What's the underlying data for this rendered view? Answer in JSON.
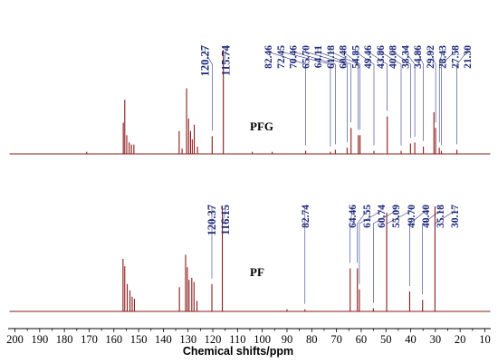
{
  "chart_data": {
    "type": "line",
    "xlabel": "Chemical shifts/ppm",
    "ylabel": "",
    "xlim": [
      200,
      10
    ],
    "x_reversed": true,
    "x_ticks": [
      200,
      190,
      180,
      170,
      160,
      150,
      140,
      130,
      120,
      110,
      100,
      90,
      80,
      70,
      60,
      50,
      40,
      30,
      20,
      10
    ],
    "trace_color": "#8b1a1a",
    "label_color": "#1f2a7a",
    "series": [
      {
        "name": "PFG",
        "peaks": [
          {
            "x": 171.0,
            "h": 0.02
          },
          {
            "x": 156.2,
            "h": 0.3
          },
          {
            "x": 155.6,
            "h": 0.52
          },
          {
            "x": 154.8,
            "h": 0.18
          },
          {
            "x": 153.8,
            "h": 0.11
          },
          {
            "x": 152.9,
            "h": 0.09
          },
          {
            "x": 151.9,
            "h": 0.09
          },
          {
            "x": 133.6,
            "h": 0.22
          },
          {
            "x": 132.4,
            "h": 0.05
          },
          {
            "x": 130.6,
            "h": 0.63
          },
          {
            "x": 129.8,
            "h": 0.34
          },
          {
            "x": 129.0,
            "h": 0.22
          },
          {
            "x": 128.3,
            "h": 0.14
          },
          {
            "x": 127.5,
            "h": 0.28
          },
          {
            "x": 126.2,
            "h": 0.07
          },
          {
            "x": 120.27,
            "h": 0.17
          },
          {
            "x": 115.74,
            "h": 1.0
          },
          {
            "x": 104.0,
            "h": 0.02
          },
          {
            "x": 96.0,
            "h": 0.02
          },
          {
            "x": 82.46,
            "h": 0.03
          },
          {
            "x": 72.45,
            "h": 0.02
          },
          {
            "x": 70.46,
            "h": 0.04
          },
          {
            "x": 65.7,
            "h": 0.06
          },
          {
            "x": 64.11,
            "h": 0.25
          },
          {
            "x": 61.18,
            "h": 0.18
          },
          {
            "x": 60.48,
            "h": 0.18
          },
          {
            "x": 54.85,
            "h": 0.03
          },
          {
            "x": 49.46,
            "h": 0.36
          },
          {
            "x": 43.86,
            "h": 0.03
          },
          {
            "x": 40.08,
            "h": 0.1
          },
          {
            "x": 38.34,
            "h": 0.11
          },
          {
            "x": 34.86,
            "h": 0.07
          },
          {
            "x": 30.6,
            "h": 0.4
          },
          {
            "x": 29.92,
            "h": 0.25
          },
          {
            "x": 28.43,
            "h": 0.06
          },
          {
            "x": 27.58,
            "h": 0.03
          },
          {
            "x": 21.3,
            "h": 0.04
          }
        ],
        "annotations": [
          "120.27",
          "115.74",
          "82.46",
          "72.45",
          "70.46",
          "65.70",
          "64.11",
          "61.18",
          "60.48",
          "54.85",
          "49.46",
          "43.86",
          "40.08",
          "38.34",
          "34.86",
          "29.92",
          "28.43",
          "27.58",
          "21.30"
        ]
      },
      {
        "name": "PF",
        "peaks": [
          {
            "x": 156.3,
            "h": 0.5
          },
          {
            "x": 155.6,
            "h": 0.43
          },
          {
            "x": 154.6,
            "h": 0.26
          },
          {
            "x": 153.5,
            "h": 0.2
          },
          {
            "x": 152.6,
            "h": 0.14
          },
          {
            "x": 151.7,
            "h": 0.12
          },
          {
            "x": 133.5,
            "h": 0.23
          },
          {
            "x": 131.0,
            "h": 0.54
          },
          {
            "x": 130.3,
            "h": 0.42
          },
          {
            "x": 129.6,
            "h": 0.3
          },
          {
            "x": 128.5,
            "h": 0.32
          },
          {
            "x": 127.6,
            "h": 0.28
          },
          {
            "x": 126.4,
            "h": 0.1
          },
          {
            "x": 120.37,
            "h": 0.26
          },
          {
            "x": 116.15,
            "h": 1.0
          },
          {
            "x": 90.0,
            "h": 0.02
          },
          {
            "x": 82.74,
            "h": 0.02
          },
          {
            "x": 64.46,
            "h": 0.41
          },
          {
            "x": 61.55,
            "h": 0.41
          },
          {
            "x": 60.74,
            "h": 0.21
          },
          {
            "x": 55.09,
            "h": 0.03
          },
          {
            "x": 49.7,
            "h": 0.94
          },
          {
            "x": 40.4,
            "h": 0.19
          },
          {
            "x": 35.18,
            "h": 0.11
          },
          {
            "x": 30.17,
            "h": 1.0
          }
        ],
        "annotations": [
          "120.37",
          "116.15",
          "82.74",
          "64.46",
          "61.55",
          "60.74",
          "55.09",
          "49.70",
          "40.40",
          "35.18",
          "30.17"
        ]
      }
    ]
  }
}
